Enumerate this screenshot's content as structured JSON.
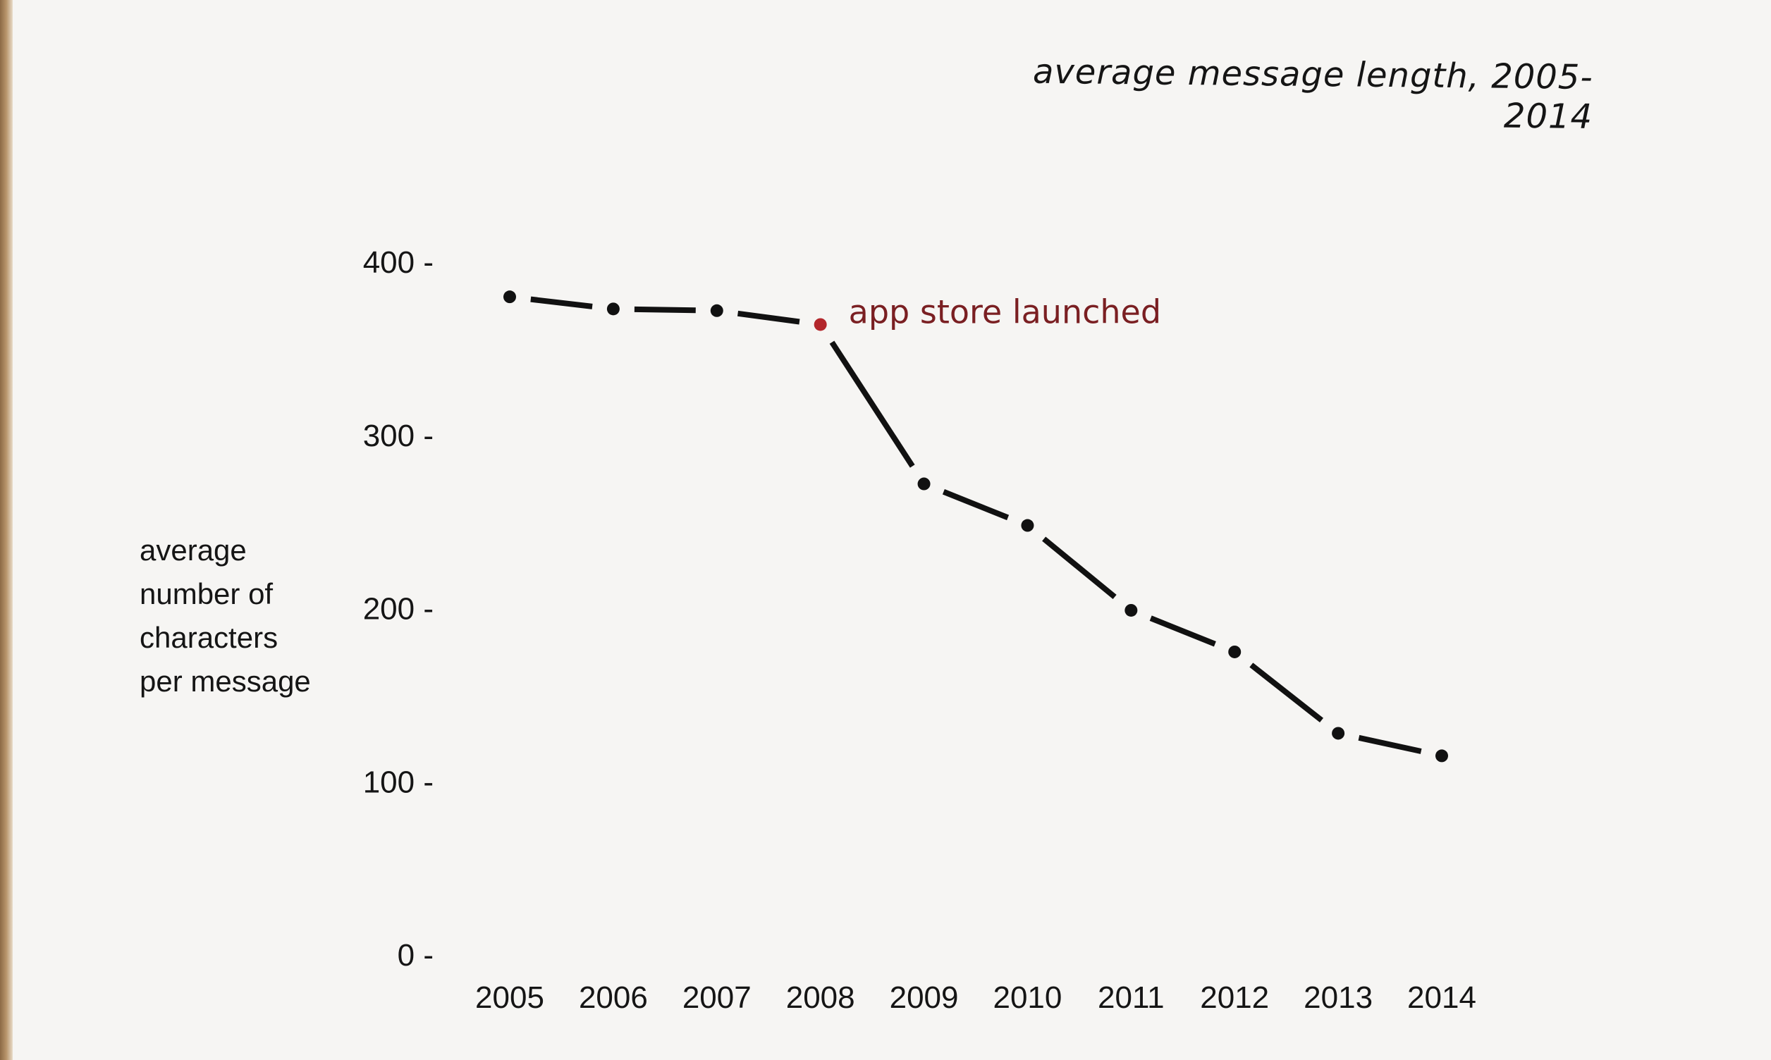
{
  "chart_data": {
    "type": "line",
    "title": "average message length, 2005-2014",
    "ylabel_lines": [
      "average",
      "number of",
      "characters",
      "per message"
    ],
    "x": [
      2005,
      2006,
      2007,
      2008,
      2009,
      2010,
      2011,
      2012,
      2013,
      2014
    ],
    "x_tick_labels": [
      "2005",
      "2006",
      "2007",
      "2008",
      "2009",
      "2010",
      "2011",
      "2012",
      "2013",
      "2014"
    ],
    "y_ticks": [
      0,
      100,
      200,
      300,
      400
    ],
    "y_tick_labels": [
      "0 -",
      "100 -",
      "200 -",
      "300 -",
      "400 -"
    ],
    "ylim": [
      0,
      400
    ],
    "series": [
      {
        "values": [
          380,
          373,
          372,
          364,
          272,
          248,
          199,
          175,
          128,
          115
        ]
      }
    ],
    "annotation": {
      "x": 2008,
      "text": "app store launched",
      "color": "#b3262b"
    },
    "line_color": "#111111",
    "grid": false,
    "legend": false
  }
}
